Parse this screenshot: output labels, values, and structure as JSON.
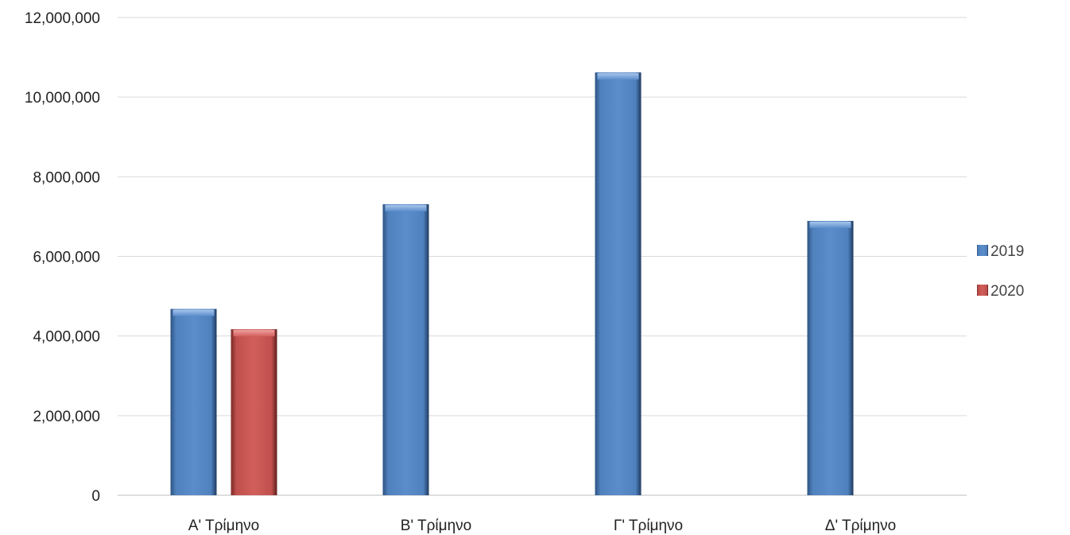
{
  "chart_data": {
    "type": "bar",
    "categories": [
      "Α' Τρίμηνο",
      "Β' Τρίμηνο",
      "Γ' Τρίμηνο",
      "Δ' Τρίμηνο"
    ],
    "series": [
      {
        "name": "2019",
        "color": "#4F81BD",
        "values": [
          4680000,
          7310000,
          10620000,
          6890000
        ]
      },
      {
        "name": "2020",
        "color": "#C0504D",
        "values": [
          4170000,
          null,
          null,
          null
        ]
      }
    ],
    "ylim": [
      0,
      12000000
    ],
    "yticks": [
      0,
      2000000,
      4000000,
      6000000,
      8000000,
      10000000,
      12000000
    ],
    "ytick_labels": [
      "0",
      "2,000,000",
      "4,000,000",
      "6,000,000",
      "8,000,000",
      "10,000,000",
      "12,000,000"
    ],
    "grid": true,
    "legend_position": "right",
    "title": "",
    "xlabel": "",
    "ylabel": ""
  }
}
